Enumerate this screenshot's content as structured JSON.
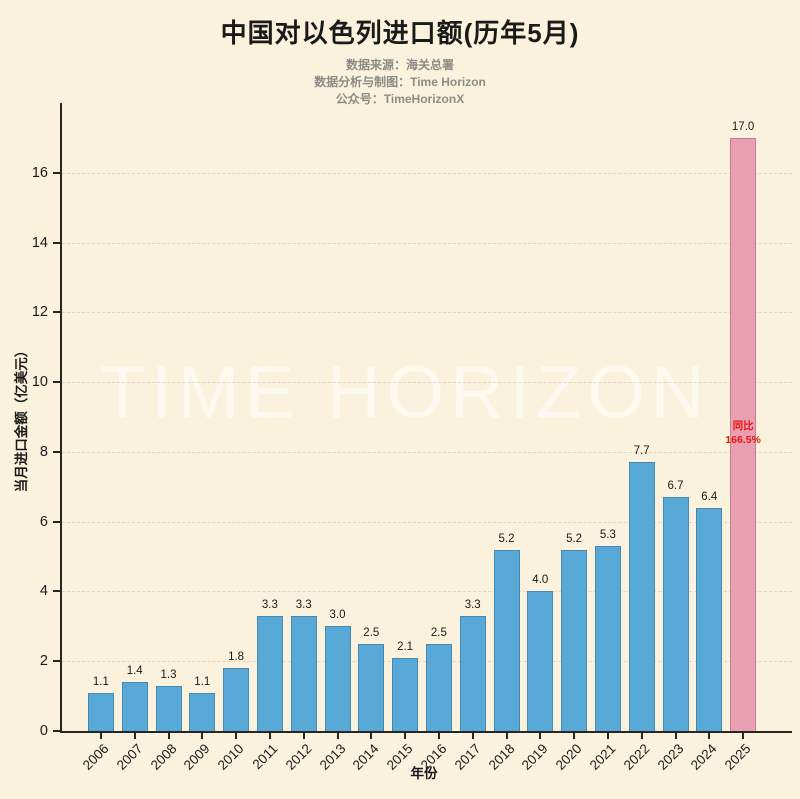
{
  "header": {
    "title": "中国对以色列进口额(历年5月)",
    "subtitle_lines": [
      "数据来源：海关总署",
      "数据分析与制图：Time Horizon",
      "公众号：TimeHorizonX"
    ]
  },
  "watermark": "TIME HORIZON",
  "chart_data": {
    "type": "bar",
    "title": "中国对以色列进口额(历年5月)",
    "xlabel": "年份",
    "ylabel": "当月进口金额（亿美元）",
    "categories": [
      "2006",
      "2007",
      "2008",
      "2009",
      "2010",
      "2011",
      "2012",
      "2013",
      "2014",
      "2015",
      "2016",
      "2017",
      "2018",
      "2019",
      "2020",
      "2021",
      "2022",
      "2023",
      "2024",
      "2025"
    ],
    "values": [
      1.1,
      1.4,
      1.3,
      1.1,
      1.8,
      3.3,
      3.3,
      3.0,
      2.5,
      2.1,
      2.5,
      3.3,
      5.2,
      4.0,
      5.2,
      5.3,
      7.7,
      6.7,
      6.4,
      17.0
    ],
    "yticks": [
      0,
      2,
      4,
      6,
      8,
      10,
      12,
      14,
      16
    ],
    "ylim": [
      0,
      18
    ],
    "grid": true,
    "legend": null,
    "highlight_index": 19,
    "annotation": {
      "lines": [
        "同比",
        "166.5%"
      ],
      "x_index": 19,
      "y_value": 8.5
    },
    "colors": {
      "background": "#fbf2dd",
      "bar": "#58a8d8",
      "highlight": "#ea9fb2",
      "annotation": "#e41910",
      "axis": "#262626"
    }
  }
}
